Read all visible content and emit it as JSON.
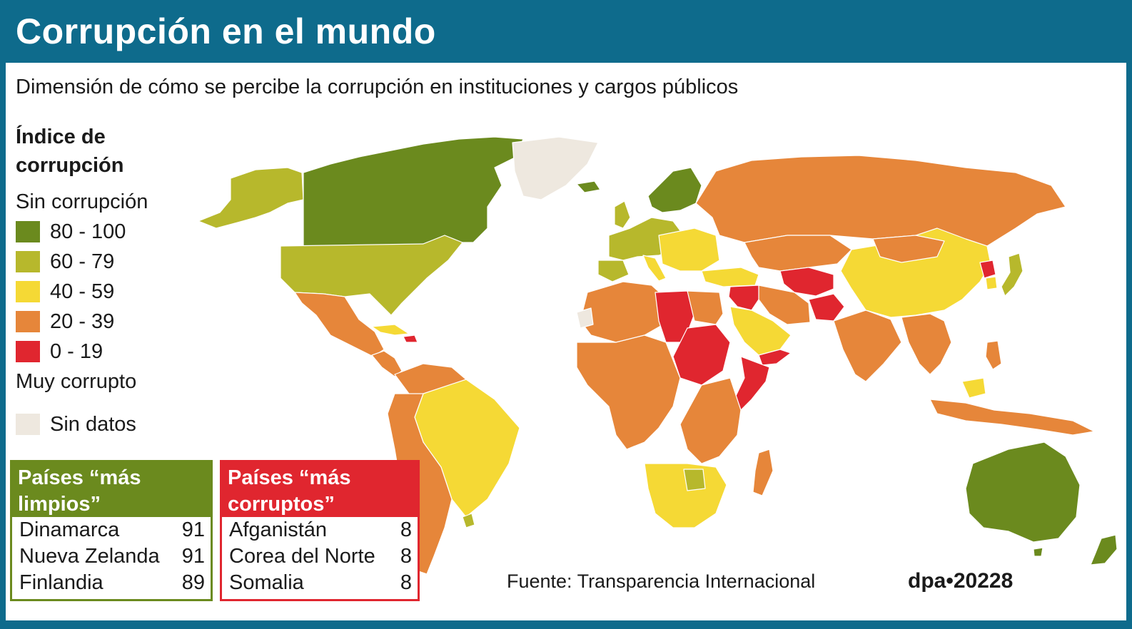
{
  "title": "Corrupción en el mundo",
  "subtitle": "Dimensión de cómo se percibe la corrupción en instituciones y cargos públicos",
  "legend": {
    "title_line1": "Índice de",
    "title_line2": "corrupción",
    "top_label": "Sin corrupción",
    "bottom_label": "Muy corrupto",
    "classes": [
      {
        "label": "80 - 100",
        "color": "#6b8a1e"
      },
      {
        "label": "60 - 79",
        "color": "#b7b82c"
      },
      {
        "label": "40 - 59",
        "color": "#f5d935"
      },
      {
        "label": "20 - 39",
        "color": "#e6863a"
      },
      {
        "label": "0 - 19",
        "color": "#e0262f"
      }
    ],
    "no_data": {
      "label": "Sin datos",
      "color": "#eee8df"
    }
  },
  "cleanest": {
    "heading_line1": "Países “más",
    "heading_line2": "limpios”",
    "rows": [
      {
        "country": "Dinamarca",
        "score": "91"
      },
      {
        "country": "Nueva Zelanda",
        "score": "91"
      },
      {
        "country": "Finlandia",
        "score": "89"
      }
    ]
  },
  "most_corrupt": {
    "heading_line1": "Países “más",
    "heading_line2": "corruptos”",
    "rows": [
      {
        "country": "Afganistán",
        "score": "8"
      },
      {
        "country": "Corea del Norte",
        "score": "8"
      },
      {
        "country": "Somalia",
        "score": "8"
      }
    ]
  },
  "source": "Fuente: Transparencia Internacional",
  "credit": "dpa•20228"
}
